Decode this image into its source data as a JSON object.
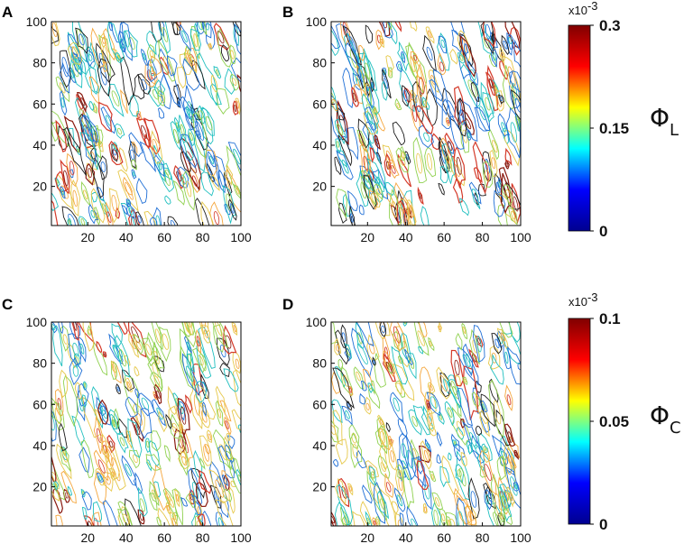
{
  "chart_data": [
    {
      "type": "contour",
      "panel_label": "A",
      "x_ticks": [
        "20",
        "40",
        "60",
        "80",
        "100"
      ],
      "y_ticks": [
        "20",
        "40",
        "60",
        "80",
        "100"
      ],
      "xlim": [
        1,
        100
      ],
      "ylim": [
        1,
        100
      ],
      "field": "Φ_L",
      "colorbar_group": "L"
    },
    {
      "type": "contour",
      "panel_label": "B",
      "x_ticks": [
        "20",
        "40",
        "60",
        "80",
        "100"
      ],
      "y_ticks": [
        "20",
        "40",
        "60",
        "80",
        "100"
      ],
      "xlim": [
        1,
        100
      ],
      "ylim": [
        1,
        100
      ],
      "field": "Φ_L",
      "colorbar_group": "L"
    },
    {
      "type": "contour",
      "panel_label": "C",
      "x_ticks": [
        "20",
        "40",
        "60",
        "80",
        "100"
      ],
      "y_ticks": [
        "20",
        "40",
        "60",
        "80",
        "100"
      ],
      "xlim": [
        1,
        100
      ],
      "ylim": [
        1,
        100
      ],
      "field": "Φ_C",
      "colorbar_group": "C"
    },
    {
      "type": "contour",
      "panel_label": "D",
      "x_ticks": [
        "20",
        "40",
        "60",
        "80",
        "100"
      ],
      "y_ticks": [
        "20",
        "40",
        "60",
        "80",
        "100"
      ],
      "xlim": [
        1,
        100
      ],
      "ylim": [
        1,
        100
      ],
      "field": "Φ_C",
      "colorbar_group": "C"
    }
  ],
  "colorbars": [
    {
      "id": "L",
      "multiplier": "x10",
      "exponent": "-3",
      "range": [
        0,
        0.3
      ],
      "tick_labels": [
        "0.3",
        "0.15",
        "0"
      ],
      "tick_values": [
        0.3,
        0.15,
        0
      ],
      "symbol": "Φ",
      "subscript": "L"
    },
    {
      "id": "C",
      "multiplier": "x10",
      "exponent": "-3",
      "range": [
        0,
        0.1
      ],
      "tick_labels": [
        "0.1",
        "0.05",
        "0"
      ],
      "tick_values": [
        0.1,
        0.05,
        0
      ],
      "symbol": "Φ",
      "subscript": "C"
    }
  ],
  "colormap": [
    "#00008f",
    "#0000ff",
    "#00ffff",
    "#ffff00",
    "#ff0000",
    "#800000"
  ],
  "contour_palette": [
    "#1a1a1a",
    "#1f6fd6",
    "#1fbfbf",
    "#8fd14f",
    "#e6c84a",
    "#f5a63c",
    "#d43a2a",
    "#8a1a10"
  ]
}
